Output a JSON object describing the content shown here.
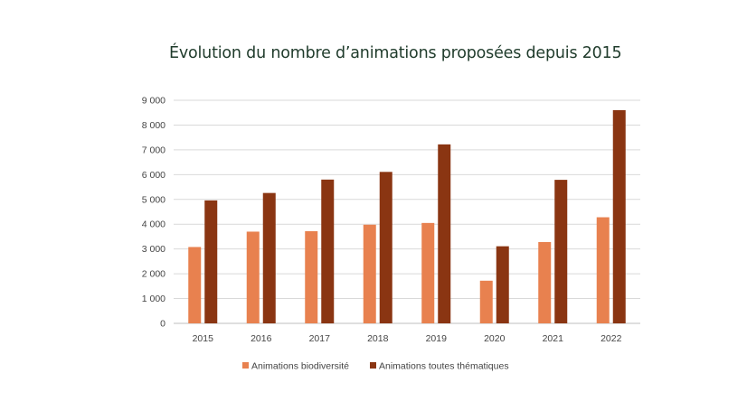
{
  "chart_data": {
    "type": "bar",
    "title": "Évolution du nombre d’animations proposées depuis 2015",
    "xlabel": "",
    "ylabel": "",
    "categories": [
      "2015",
      "2016",
      "2017",
      "2018",
      "2019",
      "2020",
      "2021",
      "2022"
    ],
    "ylim": [
      0,
      9000
    ],
    "yticks": [
      0,
      1000,
      2000,
      3000,
      4000,
      5000,
      6000,
      7000,
      8000,
      9000
    ],
    "ytick_labels": [
      "0",
      "1 000",
      "2 000",
      "3 000",
      "4 000",
      "5 000",
      "6 000",
      "7 000",
      "8 000",
      "9 000"
    ],
    "grid": true,
    "legend_position": "bottom-center",
    "series": [
      {
        "name": "Animations biodiversité",
        "color": "#e8814f",
        "values": [
          3080,
          3700,
          3720,
          3980,
          4050,
          1720,
          3280,
          4280
        ]
      },
      {
        "name": "Animations toutes thématiques",
        "color": "#8a3512",
        "values": [
          4960,
          5260,
          5800,
          6110,
          7220,
          3110,
          5790,
          8600
        ]
      }
    ]
  }
}
